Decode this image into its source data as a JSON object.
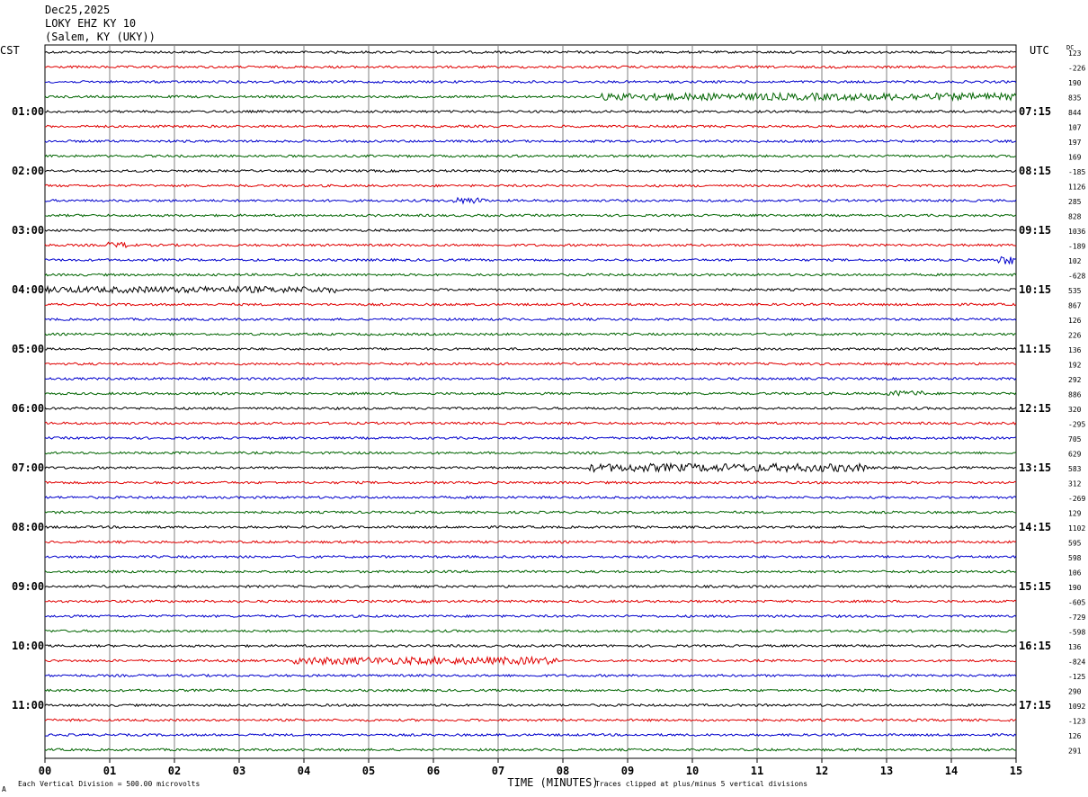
{
  "header": {
    "date": "Dec25,2025",
    "station": "LOKY EHZ KY 10",
    "location": "(Salem, KY (UKY))"
  },
  "left_tz": "CST",
  "right_tz": "UTC",
  "dc_label": "DC",
  "footer": {
    "scale_note": "Each Vertical Division =  500.00 microvolts",
    "clip_note": "Traces clipped at plus/minus 5 vertical divisions",
    "corner_mark": "A"
  },
  "colors": {
    "trace_cycle": [
      "#000000",
      "#e00000",
      "#0000cc",
      "#006400"
    ],
    "grid": "#808080"
  },
  "chart_data": {
    "type": "line",
    "title": "LOKY EHZ KY 10",
    "xlabel": "TIME (MINUTES)",
    "x_ticks": [
      "00",
      "01",
      "02",
      "03",
      "04",
      "05",
      "06",
      "07",
      "08",
      "09",
      "10",
      "11",
      "12",
      "13",
      "14",
      "15"
    ],
    "xlim": [
      0,
      15
    ],
    "rows": 48,
    "row_minutes": 15,
    "left_hour_labels": [
      "01:00",
      "02:00",
      "03:00",
      "04:00",
      "05:00",
      "06:00",
      "07:00",
      "08:00",
      "09:00",
      "10:00",
      "11:00"
    ],
    "right_hour_labels": [
      "07:15",
      "08:15",
      "09:15",
      "10:15",
      "11:15",
      "12:15",
      "13:15",
      "14:15",
      "15:15",
      "16:15",
      "17:15"
    ],
    "dc_offsets": [
      "123",
      "-226",
      "190",
      "835",
      "844",
      "107",
      "197",
      "169",
      "-185",
      "1126",
      "285",
      "828",
      "1036",
      "-189",
      "102",
      "-628",
      "535",
      "867",
      "126",
      "226",
      "136",
      "192",
      "292",
      "886",
      "320",
      "-295",
      "705",
      "629",
      "583",
      "312",
      "-269",
      "129",
      "1102",
      "595",
      "598",
      "106",
      "190",
      "-605",
      "-729",
      "-598",
      "136",
      "-824",
      "-125",
      "290",
      "1092",
      "-123",
      "126",
      "291"
    ],
    "events": [
      {
        "row": 3,
        "start_min": 8.6,
        "end_min": 15.0,
        "amp": 2.5
      },
      {
        "row": 16,
        "start_min": 0.0,
        "end_min": 4.5,
        "amp": 2.2
      },
      {
        "row": 28,
        "start_min": 8.4,
        "end_min": 12.7,
        "amp": 2.8
      },
      {
        "row": 41,
        "start_min": 3.8,
        "end_min": 7.9,
        "amp": 2.6
      },
      {
        "row": 14,
        "start_min": 14.7,
        "end_min": 15.0,
        "amp": 3.0
      },
      {
        "row": 13,
        "start_min": 0.9,
        "end_min": 1.4,
        "amp": 2.0
      },
      {
        "row": 10,
        "start_min": 6.3,
        "end_min": 6.8,
        "amp": 2.2
      },
      {
        "row": 23,
        "start_min": 13.0,
        "end_min": 13.6,
        "amp": 2.0
      }
    ]
  }
}
